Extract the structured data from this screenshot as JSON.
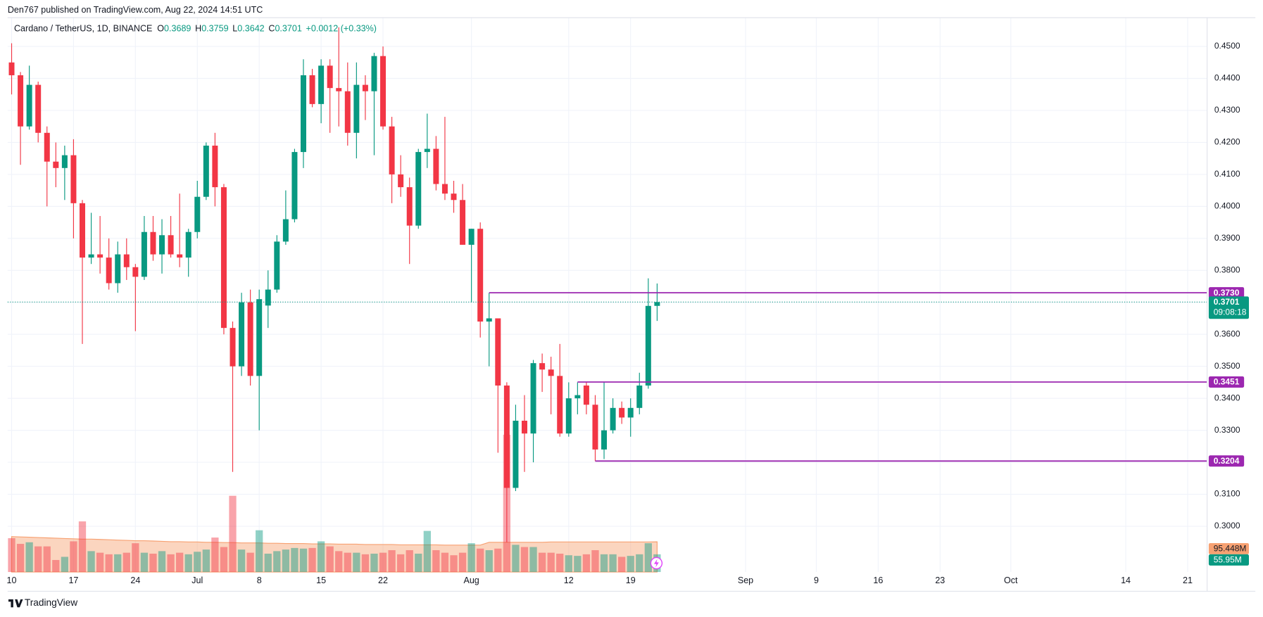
{
  "chart_data": {
    "type": "candlestick",
    "header": "Den767 published on TradingView.com, Aug 22, 2024 14:51 UTC",
    "symbol": "Cardano / TetherUS, 1D, BINANCE",
    "ohlc": [
      {
        "key": "O",
        "value": "0.3689"
      },
      {
        "key": "H",
        "value": "0.3759"
      },
      {
        "key": "L",
        "value": "0.3642"
      },
      {
        "key": "C",
        "value": "0.3701"
      }
    ],
    "change": "+0.0012 (+0.33%)",
    "up_color": "#089981",
    "down_color": "#f23645",
    "candles": {
      "open": [
        0.445,
        0.441,
        0.425,
        0.438,
        0.423,
        0.414,
        0.412,
        0.416,
        0.401,
        0.384,
        0.385,
        0.384,
        0.376,
        0.385,
        0.381,
        0.378,
        0.392,
        0.385,
        0.391,
        0.385,
        0.384,
        0.392,
        0.403,
        0.419,
        0.406,
        0.362,
        0.35,
        0.37,
        0.347,
        0.369,
        0.374,
        0.389,
        0.396,
        0.417,
        0.441,
        0.432,
        0.444,
        0.437,
        0.436,
        0.423,
        0.438,
        0.436,
        0.447,
        0.425,
        0.41,
        0.406,
        0.394,
        0.417,
        0.418,
        0.407,
        0.404,
        0.402,
        0.388,
        0.393,
        0.364,
        0.365,
        0.344,
        0.312,
        0.333,
        0.329,
        0.351,
        0.349,
        0.347,
        0.329,
        0.34,
        0.344,
        0.338,
        0.324,
        0.33,
        0.337,
        0.334,
        0.337,
        0.344,
        0.3689
      ],
      "high": [
        0.451,
        0.442,
        0.444,
        0.439,
        0.425,
        0.42,
        0.419,
        0.421,
        0.402,
        0.398,
        0.397,
        0.39,
        0.389,
        0.39,
        0.382,
        0.397,
        0.397,
        0.396,
        0.397,
        0.404,
        0.393,
        0.408,
        0.42,
        0.423,
        0.407,
        0.364,
        0.373,
        0.374,
        0.374,
        0.38,
        0.391,
        0.405,
        0.418,
        0.446,
        0.443,
        0.446,
        0.446,
        0.456,
        0.445,
        0.445,
        0.441,
        0.448,
        0.45,
        0.428,
        0.416,
        0.409,
        0.418,
        0.429,
        0.422,
        0.428,
        0.408,
        0.407,
        0.393,
        0.395,
        0.373,
        0.365,
        0.345,
        0.338,
        0.341,
        0.352,
        0.354,
        0.353,
        0.357,
        0.345,
        0.345,
        0.345,
        0.341,
        0.345,
        0.34,
        0.339,
        0.34,
        0.348,
        0.3775,
        0.3759
      ],
      "low": [
        0.435,
        0.413,
        0.424,
        0.42,
        0.4,
        0.406,
        0.402,
        0.39,
        0.357,
        0.382,
        0.379,
        0.374,
        0.373,
        0.377,
        0.361,
        0.377,
        0.383,
        0.379,
        0.384,
        0.381,
        0.378,
        0.39,
        0.402,
        0.4,
        0.36,
        0.317,
        0.347,
        0.344,
        0.33,
        0.362,
        0.373,
        0.388,
        0.395,
        0.412,
        0.431,
        0.426,
        0.423,
        0.425,
        0.419,
        0.415,
        0.427,
        0.416,
        0.424,
        0.401,
        0.403,
        0.382,
        0.393,
        0.412,
        0.405,
        0.402,
        0.398,
        0.388,
        0.37,
        0.359,
        0.35,
        0.323,
        0.295,
        0.311,
        0.317,
        0.32,
        0.342,
        0.335,
        0.328,
        0.328,
        0.335,
        0.335,
        0.3204,
        0.321,
        0.329,
        0.332,
        0.328,
        0.335,
        0.343,
        0.3642
      ],
      "close": [
        0.441,
        0.425,
        0.438,
        0.423,
        0.414,
        0.412,
        0.416,
        0.401,
        0.384,
        0.385,
        0.384,
        0.376,
        0.385,
        0.381,
        0.378,
        0.392,
        0.385,
        0.391,
        0.385,
        0.384,
        0.392,
        0.403,
        0.419,
        0.406,
        0.362,
        0.35,
        0.37,
        0.347,
        0.371,
        0.374,
        0.389,
        0.396,
        0.417,
        0.441,
        0.432,
        0.444,
        0.437,
        0.436,
        0.423,
        0.438,
        0.436,
        0.447,
        0.425,
        0.41,
        0.406,
        0.394,
        0.417,
        0.418,
        0.407,
        0.404,
        0.402,
        0.388,
        0.393,
        0.364,
        0.365,
        0.344,
        0.312,
        0.333,
        0.329,
        0.351,
        0.349,
        0.347,
        0.329,
        0.34,
        0.341,
        0.338,
        0.324,
        0.33,
        0.337,
        0.334,
        0.337,
        0.344,
        0.3689,
        0.3701
      ]
    },
    "volume": {
      "values": [
        107,
        89,
        94,
        81,
        81,
        38,
        48,
        97,
        160,
        66,
        61,
        56,
        56,
        61,
        91,
        61,
        58,
        66,
        56,
        61,
        56,
        64,
        71,
        109,
        79,
        241,
        71,
        61,
        132,
        58,
        66,
        71,
        76,
        74,
        76,
        97,
        81,
        66,
        61,
        61,
        56,
        58,
        61,
        69,
        56,
        69,
        58,
        130,
        69,
        61,
        53,
        61,
        91,
        74,
        69,
        74,
        434,
        86,
        79,
        79,
        61,
        61,
        58,
        53,
        51,
        56,
        69,
        56,
        56,
        48,
        51,
        56,
        91,
        55.95
      ],
      "ma": [
        112,
        111,
        110,
        109,
        108,
        107,
        106,
        105,
        104,
        104,
        103,
        102,
        101,
        100,
        99,
        99,
        98,
        97,
        96,
        96,
        95,
        95,
        94,
        94,
        93,
        93,
        92,
        92,
        92,
        91,
        91,
        90,
        90,
        90,
        89,
        89,
        89,
        88,
        88,
        88,
        87,
        87,
        87,
        87,
        86,
        86,
        86,
        86,
        86,
        85,
        85,
        85,
        85,
        85,
        94,
        94,
        94,
        94,
        94,
        94,
        94,
        95,
        95,
        95,
        95,
        95,
        95,
        95,
        95,
        95,
        95,
        95,
        95,
        95.448
      ],
      "label": "55.95M",
      "ma_label": "95.448M",
      "ma_color": "#f7a172"
    },
    "levels": [
      {
        "value": 0.373,
        "label": "0.3730",
        "from_x": 54
      },
      {
        "value": 0.3451,
        "label": "0.3451",
        "from_x": 64
      },
      {
        "value": 0.3204,
        "label": "0.3204",
        "from_x": 66
      }
    ],
    "level_color": "#9c27b0",
    "last_price": {
      "value": 0.3701,
      "label": "0.3701",
      "countdown": "09:08:18"
    },
    "ylim": [
      0.2857,
      0.459
    ],
    "yticks": [
      {
        "value": 0.45,
        "label": "0.4500"
      },
      {
        "value": 0.44,
        "label": "0.4400"
      },
      {
        "value": 0.43,
        "label": "0.4300"
      },
      {
        "value": 0.42,
        "label": "0.4200"
      },
      {
        "value": 0.41,
        "label": "0.4100"
      },
      {
        "value": 0.4,
        "label": "0.4000"
      },
      {
        "value": 0.39,
        "label": "0.3900"
      },
      {
        "value": 0.38,
        "label": "0.3800"
      },
      {
        "value": 0.37,
        "label": "0.3700"
      },
      {
        "value": 0.36,
        "label": "0.3600"
      },
      {
        "value": 0.35,
        "label": "0.3500"
      },
      {
        "value": 0.34,
        "label": "0.3400"
      },
      {
        "value": 0.33,
        "label": "0.3300"
      },
      {
        "value": 0.32,
        "label": "0.3200"
      },
      {
        "value": 0.31,
        "label": "0.3100"
      },
      {
        "value": 0.3,
        "label": "0.3000"
      }
    ],
    "xlim": [
      -0.45,
      135.2
    ],
    "xticks": [
      {
        "value": 0,
        "label": "10"
      },
      {
        "value": 7,
        "label": "17"
      },
      {
        "value": 14,
        "label": "24"
      },
      {
        "value": 21,
        "label": "Jul"
      },
      {
        "value": 28,
        "label": "8"
      },
      {
        "value": 35,
        "label": "15"
      },
      {
        "value": 42,
        "label": "22"
      },
      {
        "value": 52,
        "label": "Aug"
      },
      {
        "value": 63,
        "label": "12"
      },
      {
        "value": 70,
        "label": "19"
      },
      {
        "value": 83,
        "label": "Sep"
      },
      {
        "value": 91,
        "label": "9"
      },
      {
        "value": 98,
        "label": "16"
      },
      {
        "value": 105,
        "label": "23"
      },
      {
        "value": 113,
        "label": "Oct"
      },
      {
        "value": 126,
        "label": "14"
      },
      {
        "value": 133,
        "label": "21"
      }
    ],
    "grid": true,
    "footer": "TradingView"
  }
}
